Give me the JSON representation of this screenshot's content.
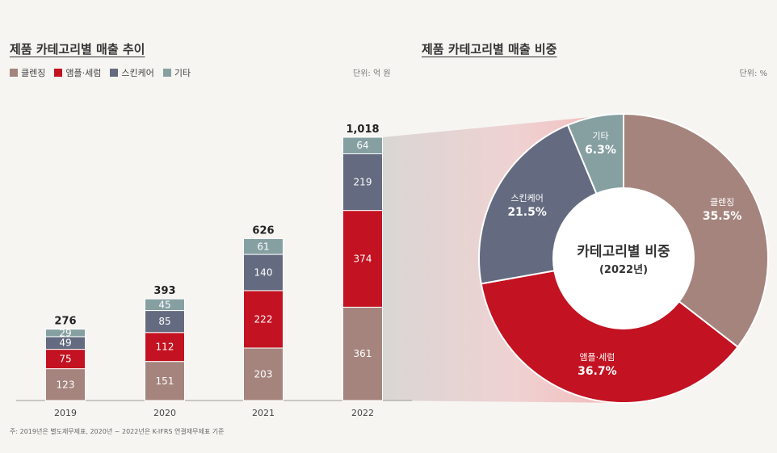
{
  "chart_data": [
    {
      "type": "bar",
      "stacked": true,
      "title": "제품 카테고리별 매출 추이",
      "unit_label": "단위: 억 원",
      "categories": [
        "2019",
        "2020",
        "2021",
        "2022"
      ],
      "series": [
        {
          "name": "클렌징",
          "color": "#a5847d",
          "values": [
            123,
            151,
            203,
            361
          ]
        },
        {
          "name": "앰플·세럼",
          "color": "#c31221",
          "values": [
            75,
            112,
            222,
            374
          ]
        },
        {
          "name": "스킨케어",
          "color": "#646b80",
          "values": [
            49,
            85,
            140,
            219
          ]
        },
        {
          "name": "기타",
          "color": "#86a0a2",
          "values": [
            29,
            45,
            61,
            64
          ]
        }
      ],
      "totals": [
        "276",
        "393",
        "626",
        "1,018"
      ],
      "ylim": [
        0,
        1018
      ]
    },
    {
      "type": "pie",
      "donut": true,
      "title": "제품 카테고리별 매출 비중",
      "unit_label": "단위: %",
      "center_title": "카테고리별 비중",
      "center_subtitle": "(2022년)",
      "slices": [
        {
          "name": "클렌징",
          "value": 35.5,
          "label": "35.5%",
          "color": "#a5847d"
        },
        {
          "name": "앰플·세럼",
          "value": 36.7,
          "label": "36.7%",
          "color": "#c31221"
        },
        {
          "name": "스킨케어",
          "value": 21.5,
          "label": "21.5%",
          "color": "#646b80"
        },
        {
          "name": "기타",
          "value": 6.3,
          "label": "6.3%",
          "color": "#86a0a2"
        }
      ]
    }
  ],
  "footnote": "주: 2019년은 별도재무제표, 2020년 ~ 2022년은 K-IFRS 연결재무제표 기준"
}
